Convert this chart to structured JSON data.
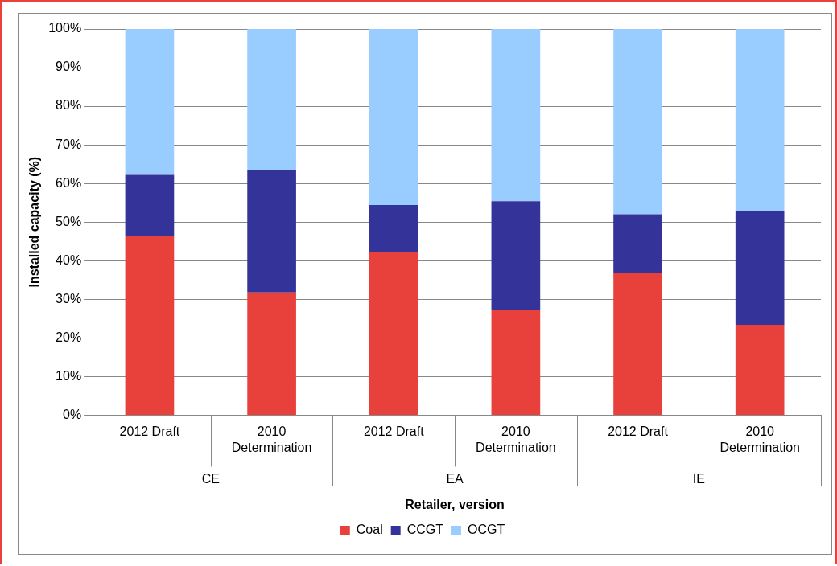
{
  "chart_data": {
    "type": "bar",
    "stacked": true,
    "categories": [
      "2012 Draft",
      "2010 Determination",
      "2012 Draft",
      "2010 Determination",
      "2012 Draft",
      "2010 Determination"
    ],
    "annotations": [
      "CE",
      "EA",
      "IE"
    ],
    "series": [
      {
        "name": "Coal",
        "color": "#e8403a",
        "values": [
          46.5,
          31.8,
          42.3,
          27.2,
          36.7,
          23.4
        ]
      },
      {
        "name": "CCGT",
        "color": "#333399",
        "values": [
          15.7,
          31.7,
          12.1,
          28.2,
          15.3,
          29.5
        ]
      },
      {
        "name": "OCGT",
        "color": "#99ccff",
        "values": [
          37.8,
          36.5,
          45.6,
          44.6,
          48.0,
          47.1
        ]
      }
    ],
    "xlabel": "Retailer, version",
    "ylabel": "Installed capacity (%)",
    "ylim": [
      0,
      100
    ],
    "yticks": [
      {
        "value": 0,
        "label": "0%"
      },
      {
        "value": 10,
        "label": "10%"
      },
      {
        "value": 20,
        "label": "20%"
      },
      {
        "value": 30,
        "label": "30%"
      },
      {
        "value": 40,
        "label": "40%"
      },
      {
        "value": 50,
        "label": "50%"
      },
      {
        "value": 60,
        "label": "60%"
      },
      {
        "value": 70,
        "label": "70%"
      },
      {
        "value": 80,
        "label": "80%"
      },
      {
        "value": 90,
        "label": "90%"
      },
      {
        "value": 100,
        "label": "100%"
      }
    ],
    "grid": "y",
    "legend": "bottom"
  }
}
